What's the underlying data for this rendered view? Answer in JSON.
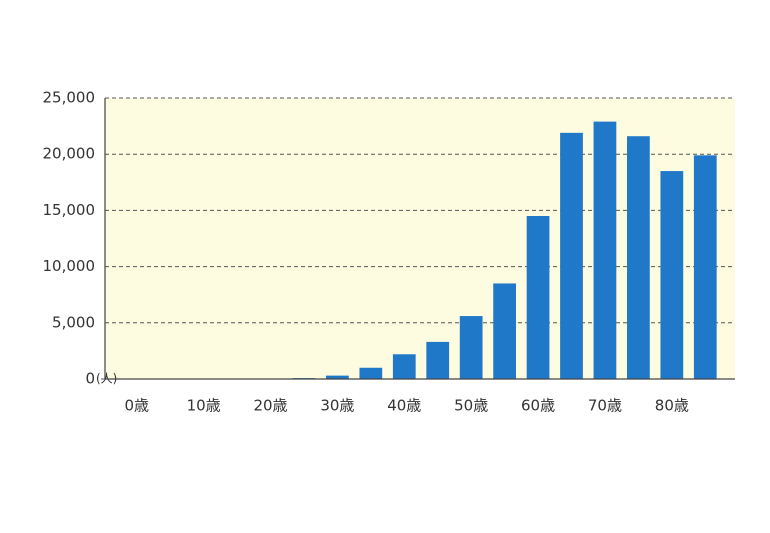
{
  "chart_data": {
    "type": "bar",
    "categories": [
      "0歳",
      null,
      "10歳",
      null,
      "20歳",
      null,
      "30歳",
      null,
      "40歳",
      null,
      "50歳",
      null,
      "60歳",
      null,
      "70歳",
      null,
      "80歳",
      null
    ],
    "values": [
      20,
      10,
      10,
      20,
      30,
      80,
      300,
      1000,
      2200,
      3300,
      5600,
      8500,
      14500,
      21900,
      22900,
      21600,
      18500,
      19900
    ],
    "color": "#1f78c8",
    "y_unit": "(人)",
    "ylim": [
      0,
      25000
    ],
    "yticks": [
      0,
      {
        "value": 5000,
        "label": "5,000"
      },
      {
        "value": 10000,
        "label": "10,000"
      },
      {
        "value": 15000,
        "label": "15,000"
      },
      {
        "value": 20000,
        "label": "20,000"
      },
      {
        "value": 25000,
        "label": "25,000"
      }
    ],
    "grid": true
  }
}
